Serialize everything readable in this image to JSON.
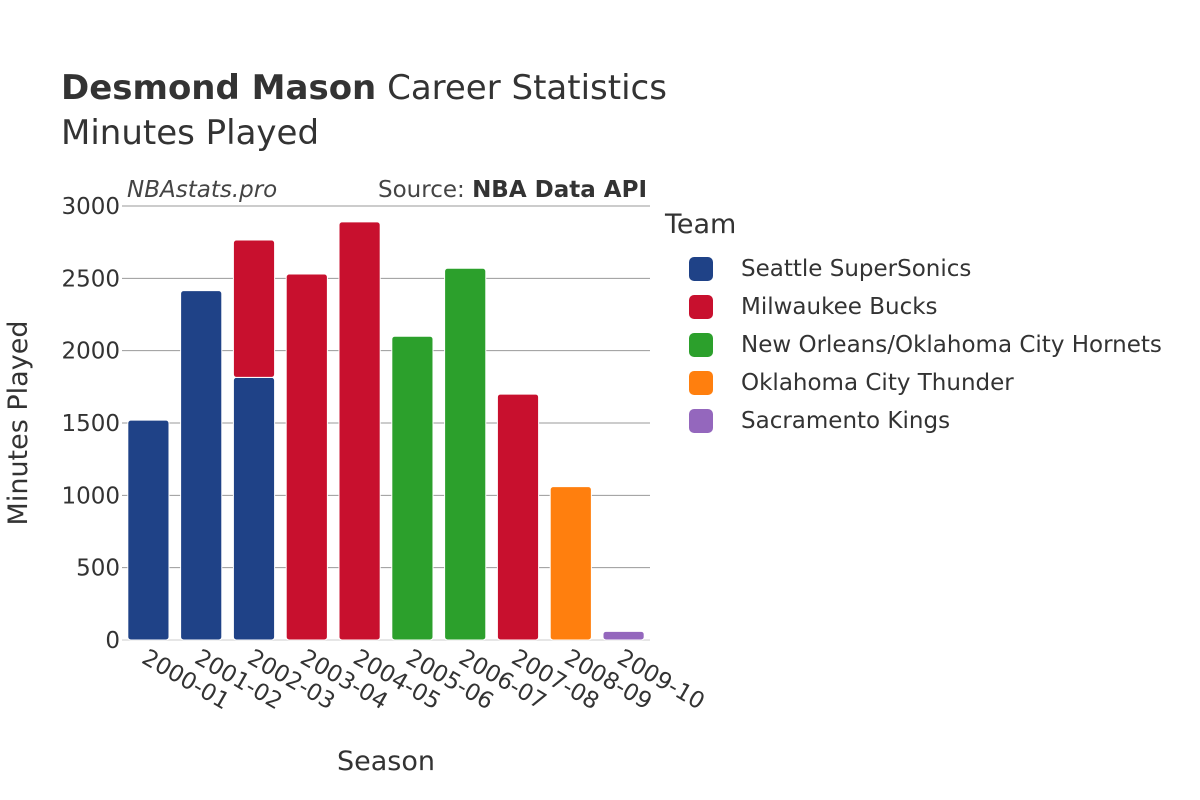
{
  "chart_data": {
    "type": "bar",
    "stacked": true,
    "title_bold": "Desmond Mason",
    "title_rest": "Career Statistics",
    "subtitle": "Minutes Played",
    "watermark": "NBAstats.pro",
    "source_prefix": "Source: ",
    "source_bold": "NBA Data API",
    "xlabel": "Season",
    "ylabel": "Minutes Played",
    "ylim": [
      0,
      3000
    ],
    "yticks": [
      0,
      500,
      1000,
      1500,
      2000,
      2500,
      3000
    ],
    "legend_title": "Team",
    "categories": [
      "2000-01",
      "2001-02",
      "2002-03",
      "2003-04",
      "2004-05",
      "2005-06",
      "2006-07",
      "2007-08",
      "2008-09",
      "2009-10"
    ],
    "series": [
      {
        "name": "Seattle SuperSonics",
        "color": "#1f4287",
        "values": [
          1520,
          2415,
          1815,
          0,
          0,
          0,
          0,
          0,
          0,
          0
        ]
      },
      {
        "name": "Milwaukee Bucks",
        "color": "#c8102e",
        "values": [
          0,
          0,
          950,
          2530,
          2890,
          0,
          0,
          1700,
          0,
          0
        ]
      },
      {
        "name": "New Orleans/Oklahoma City Hornets",
        "color": "#2ca02c",
        "values": [
          0,
          0,
          0,
          0,
          0,
          2100,
          2570,
          0,
          0,
          0
        ]
      },
      {
        "name": "Oklahoma City Thunder",
        "color": "#ff7f0e",
        "values": [
          0,
          0,
          0,
          0,
          0,
          0,
          0,
          0,
          1060,
          0
        ]
      },
      {
        "name": "Sacramento Kings",
        "color": "#9467bd",
        "values": [
          0,
          0,
          0,
          0,
          0,
          0,
          0,
          0,
          0,
          60
        ]
      }
    ]
  }
}
